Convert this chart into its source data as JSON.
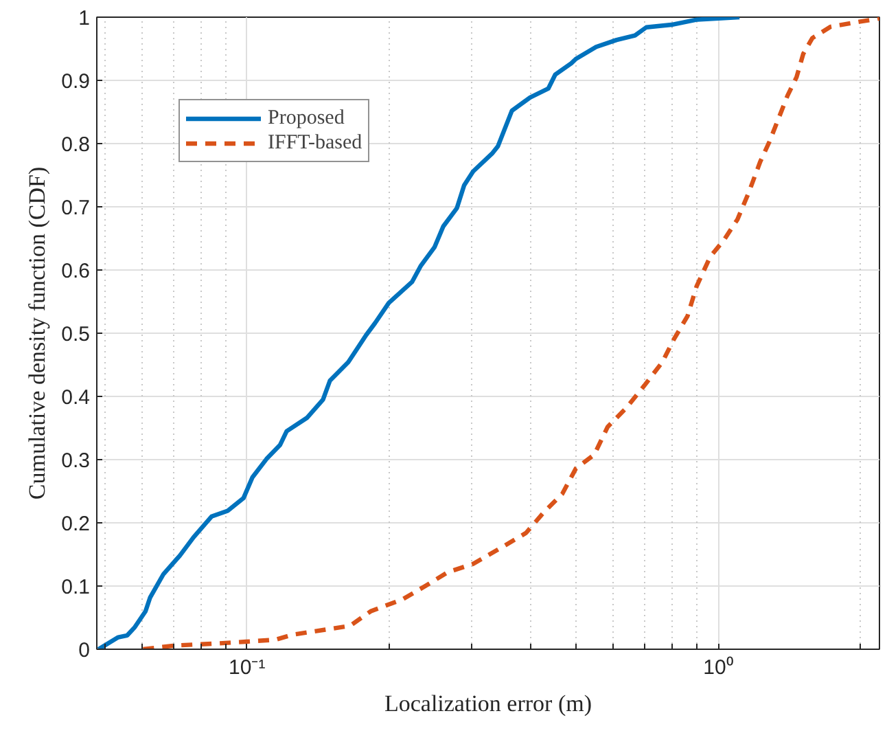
{
  "chart_data": {
    "type": "line",
    "xlabel": "Localization error (m)",
    "ylabel": "Cumulative density function (CDF)",
    "log": "x",
    "grid": true,
    "legend": "top left",
    "xlim": [
      0.048,
      2.2
    ],
    "ylim": [
      0,
      1
    ],
    "xticks": [
      {
        "value": 0.05,
        "label": null
      },
      {
        "value": 0.06,
        "label": null
      },
      {
        "value": 0.07,
        "label": null
      },
      {
        "value": 0.08,
        "label": null
      },
      {
        "value": 0.09,
        "label": null
      },
      {
        "value": 0.1,
        "label": "10⁻¹"
      },
      {
        "value": 0.2,
        "label": null
      },
      {
        "value": 0.3,
        "label": null
      },
      {
        "value": 0.4,
        "label": null
      },
      {
        "value": 0.5,
        "label": null
      },
      {
        "value": 0.6,
        "label": null
      },
      {
        "value": 0.7,
        "label": null
      },
      {
        "value": 0.8,
        "label": null
      },
      {
        "value": 0.9,
        "label": null
      },
      {
        "value": 1,
        "label": "10⁰"
      },
      {
        "value": 2,
        "label": null
      }
    ],
    "yticks": [
      0,
      0.1,
      0.2,
      0.3,
      0.4,
      0.5,
      0.6,
      0.7,
      0.8,
      0.9,
      1
    ],
    "series": [
      {
        "name": "Proposed",
        "color": "#0072bd",
        "line_style": "solid",
        "x": [
          0.0484,
          0.0533,
          0.0557,
          0.0578,
          0.0609,
          0.0623,
          0.0665,
          0.072,
          0.077,
          0.0841,
          0.091,
          0.0983,
          0.1027,
          0.11,
          0.1175,
          0.1214,
          0.134,
          0.145,
          0.15,
          0.164,
          0.179,
          0.187,
          0.2,
          0.224,
          0.234,
          0.25,
          0.261,
          0.279,
          0.289,
          0.302,
          0.332,
          0.341,
          0.365,
          0.399,
          0.436,
          0.451,
          0.488,
          0.499,
          0.551,
          0.609,
          0.666,
          0.704,
          0.796,
          0.9,
          1.11
        ],
        "values": [
          0,
          0.019,
          0.022,
          0.035,
          0.06,
          0.082,
          0.119,
          0.148,
          0.177,
          0.21,
          0.219,
          0.239,
          0.272,
          0.301,
          0.323,
          0.345,
          0.366,
          0.395,
          0.425,
          0.454,
          0.497,
          0.516,
          0.548,
          0.581,
          0.607,
          0.636,
          0.669,
          0.698,
          0.734,
          0.756,
          0.785,
          0.796,
          0.852,
          0.873,
          0.887,
          0.909,
          0.927,
          0.934,
          0.953,
          0.964,
          0.971,
          0.984,
          0.988,
          0.996,
          1.0
        ]
      },
      {
        "name": "IFFT-based",
        "color": "#d95319",
        "line_style": "dashed",
        "x": [
          0.0602,
          0.0705,
          0.086,
          0.0994,
          0.1148,
          0.125,
          0.1466,
          0.1655,
          0.183,
          0.214,
          0.239,
          0.267,
          0.302,
          0.349,
          0.391,
          0.427,
          0.467,
          0.499,
          0.546,
          0.583,
          0.637,
          0.697,
          0.761,
          0.805,
          0.861,
          0.9,
          0.962,
          1.028,
          1.099,
          1.162,
          1.228,
          1.285,
          1.344,
          1.404,
          1.467,
          1.516,
          1.585,
          1.734,
          2.004,
          2.2
        ],
        "values": [
          0,
          0.006,
          0.009,
          0.012,
          0.015,
          0.023,
          0.031,
          0.037,
          0.06,
          0.079,
          0.1,
          0.122,
          0.135,
          0.162,
          0.184,
          0.217,
          0.246,
          0.286,
          0.308,
          0.352,
          0.381,
          0.417,
          0.454,
          0.49,
          0.527,
          0.574,
          0.621,
          0.647,
          0.68,
          0.723,
          0.771,
          0.803,
          0.84,
          0.876,
          0.905,
          0.942,
          0.967,
          0.985,
          0.993,
          0.998
        ]
      }
    ]
  }
}
